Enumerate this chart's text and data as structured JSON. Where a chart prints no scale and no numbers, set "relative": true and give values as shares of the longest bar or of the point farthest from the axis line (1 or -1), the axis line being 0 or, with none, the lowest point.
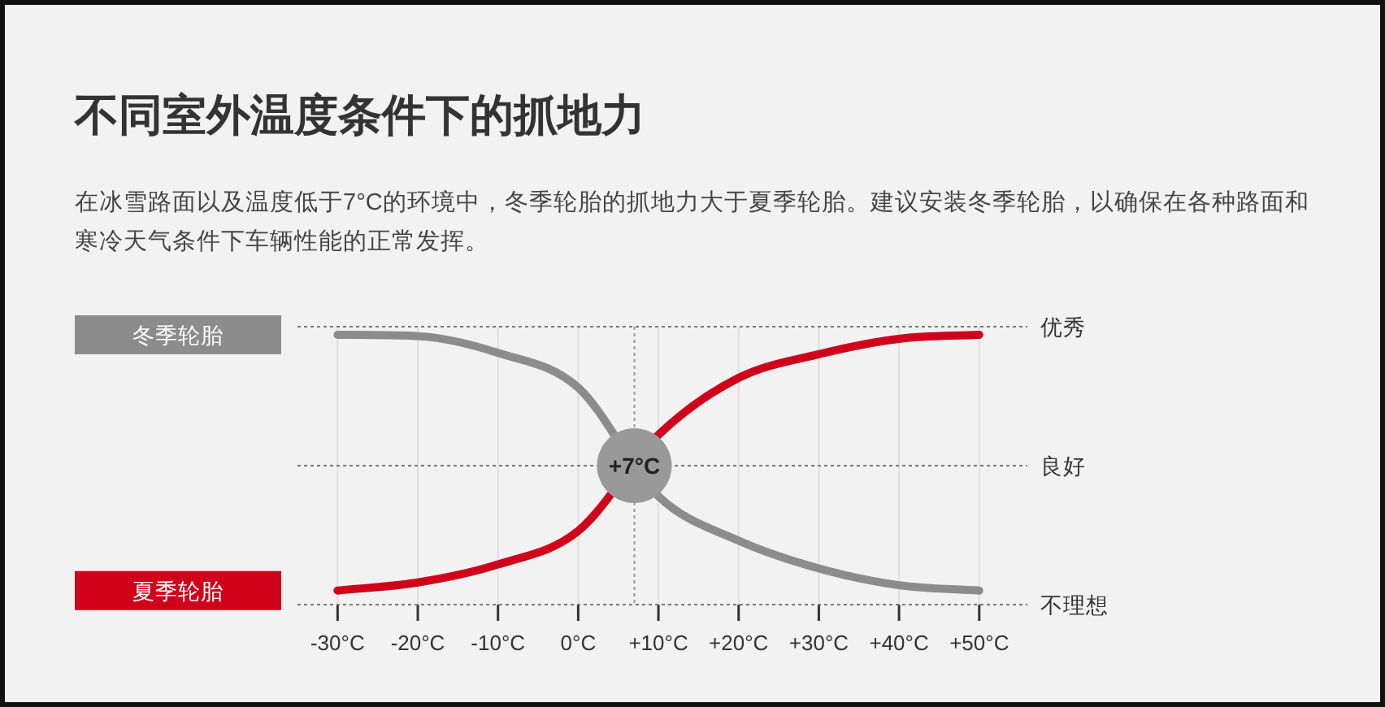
{
  "chart_data": {
    "type": "line",
    "title": "不同室外温度条件下的抓地力",
    "subtitle": "在冰雪路面以及温度低于7°C的环境中，冬季轮胎的抓地力大于夏季轮胎。建议安装冬季轮胎，以确保在各种路面和寒冷天气条件下车辆性能的正常发挥。",
    "x": [
      -30,
      -20,
      -10,
      0,
      10,
      20,
      30,
      40,
      50
    ],
    "series": [
      {
        "name": "冬季轮胎",
        "color": "#8c8c8c",
        "values": [
          1,
          0.995,
          0.933,
          0.804,
          0.402,
          0.237,
          0.134,
          0.072,
          0.052
        ]
      },
      {
        "name": "夏季轮胎",
        "color": "#d0021b",
        "values": [
          0.052,
          0.082,
          0.149,
          0.273,
          0.629,
          0.84,
          0.928,
          0.985,
          1
        ]
      }
    ],
    "xlim": [
      -35,
      56
    ],
    "xticks": [
      {
        "value": -30,
        "label": "-30°C"
      },
      {
        "value": -20,
        "label": "-20°C"
      },
      {
        "value": -10,
        "label": "-10°C"
      },
      {
        "value": 0,
        "label": "0°C"
      },
      {
        "value": 10,
        "label": "+10°C"
      },
      {
        "value": 20,
        "label": "+20°C"
      },
      {
        "value": 30,
        "label": "+30°C"
      },
      {
        "value": 40,
        "label": "+40°C"
      },
      {
        "value": 50,
        "label": "+50°C"
      }
    ],
    "relative": true,
    "grid": "x",
    "ref_lines": [
      {
        "axis": "x",
        "value": 7,
        "label": "+7°C",
        "color": "#999999",
        "line_style": "dotted"
      },
      {
        "axis": "y",
        "value": 1.03,
        "label": "优秀",
        "color": "#777777",
        "line_style": "dotted"
      },
      {
        "axis": "y",
        "value": 0.515,
        "label": "良好",
        "color": "#777777",
        "line_style": "dotted"
      },
      {
        "axis": "y",
        "value": 0,
        "label": "不理想",
        "color": "#777777",
        "line_style": "dotted"
      }
    ]
  }
}
